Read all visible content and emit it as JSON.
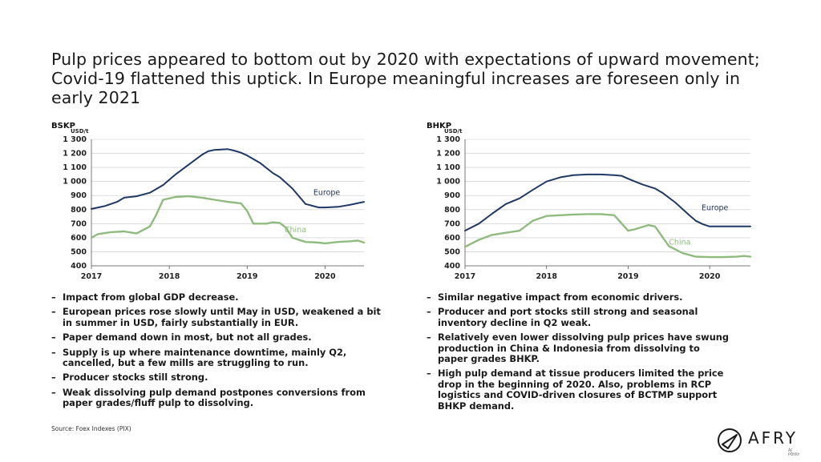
{
  "slide": {
    "title": "Pulp prices appeared to bottom out by 2020 with expectations of upward movement; Covid-19 flattened this uptick. In Europe meaningful increases are foreseen only in early 2021",
    "source": "Source: Foex Indexes (PIX)",
    "logo_text": "AFRY",
    "logo_subtext": "ÅF PÖYRY"
  },
  "left_bullets": [
    "Impact from global GDP decrease.",
    "European prices rose slowly until May in USD, weakened a bit in summer in USD, fairly substantially in EUR.",
    "Paper demand down in most, but not all grades.",
    "Supply is up where maintenance downtime, mainly Q2, cancelled, but a few mills are struggling to run.",
    "Producer stocks still strong.",
    "Weak dissolving pulp demand postpones conversions from paper grades/fluff pulp to dissolving."
  ],
  "right_bullets": [
    "Similar negative impact from economic drivers.",
    "Producer and port stocks still strong and seasonal inventory decline in Q2 weak.",
    "Relatively even lower dissolving pulp prices have swung production in China & Indonesia from dissolving to paper grades BHKP.",
    "High pulp demand at tissue producers limited the price drop in the beginning of 2020. Also, problems in RCP logistics and COVID-driven closures of BCTMP support BHKP demand."
  ],
  "colors": {
    "europe": "#1f3864",
    "china": "#8fbc7e",
    "grid": "#c8c8c8",
    "axis": "#555555"
  },
  "chart_data": [
    {
      "type": "line",
      "title": "BSKP",
      "ylabel": "USD/t",
      "ylim": [
        400,
        1300
      ],
      "xlim": [
        2017,
        2020.5
      ],
      "yticks": [
        "400",
        "500",
        "600",
        "700",
        "800",
        "900",
        "1 000",
        "1 100",
        "1 200",
        "1 300"
      ],
      "xticks": [
        "2017",
        "2018",
        "2019",
        "2020"
      ],
      "series": [
        {
          "name": "Europe",
          "x": [
            2017.0,
            2017.17,
            2017.33,
            2017.42,
            2017.58,
            2017.75,
            2017.92,
            2018.08,
            2018.25,
            2018.42,
            2018.5,
            2018.58,
            2018.75,
            2018.83,
            2018.92,
            2019.0,
            2019.17,
            2019.33,
            2019.42,
            2019.58,
            2019.75,
            2019.92,
            2020.0,
            2020.17,
            2020.33,
            2020.5
          ],
          "y": [
            805,
            825,
            855,
            885,
            895,
            920,
            975,
            1050,
            1120,
            1190,
            1215,
            1225,
            1230,
            1220,
            1205,
            1185,
            1130,
            1060,
            1030,
            950,
            840,
            815,
            815,
            820,
            835,
            855
          ]
        },
        {
          "name": "China",
          "x": [
            2017.0,
            2017.08,
            2017.25,
            2017.42,
            2017.58,
            2017.75,
            2017.83,
            2017.92,
            2018.08,
            2018.25,
            2018.42,
            2018.58,
            2018.75,
            2018.83,
            2018.92,
            2019.0,
            2019.08,
            2019.25,
            2019.33,
            2019.42,
            2019.5,
            2019.58,
            2019.75,
            2019.92,
            2020.0,
            2020.17,
            2020.33,
            2020.42,
            2020.5
          ],
          "y": [
            600,
            625,
            640,
            645,
            630,
            680,
            760,
            870,
            890,
            895,
            885,
            870,
            855,
            850,
            845,
            790,
            700,
            700,
            710,
            705,
            670,
            600,
            570,
            565,
            560,
            570,
            575,
            580,
            565
          ]
        }
      ]
    },
    {
      "type": "line",
      "title": "BHKP",
      "ylabel": "USD/t",
      "ylim": [
        400,
        1300
      ],
      "xlim": [
        2017,
        2020.5
      ],
      "yticks": [
        "400",
        "500",
        "600",
        "700",
        "800",
        "900",
        "1 000",
        "1 100",
        "1 200",
        "1 300"
      ],
      "xticks": [
        "2017",
        "2018",
        "2019",
        "2020"
      ],
      "series": [
        {
          "name": "Europe",
          "x": [
            2017.0,
            2017.17,
            2017.33,
            2017.5,
            2017.67,
            2017.83,
            2018.0,
            2018.17,
            2018.33,
            2018.5,
            2018.67,
            2018.83,
            2018.92,
            2019.0,
            2019.17,
            2019.33,
            2019.42,
            2019.58,
            2019.75,
            2019.83,
            2019.92,
            2020.0,
            2020.17,
            2020.33,
            2020.5
          ],
          "y": [
            650,
            700,
            770,
            840,
            880,
            940,
            1000,
            1030,
            1045,
            1050,
            1050,
            1045,
            1040,
            1020,
            980,
            950,
            920,
            850,
            760,
            720,
            695,
            680,
            680,
            680,
            680
          ]
        },
        {
          "name": "China",
          "x": [
            2017.0,
            2017.17,
            2017.33,
            2017.5,
            2017.67,
            2017.83,
            2018.0,
            2018.17,
            2018.33,
            2018.5,
            2018.67,
            2018.83,
            2019.0,
            2019.08,
            2019.25,
            2019.33,
            2019.5,
            2019.67,
            2019.83,
            2020.0,
            2020.17,
            2020.33,
            2020.42,
            2020.5
          ],
          "y": [
            535,
            585,
            620,
            635,
            650,
            720,
            755,
            760,
            765,
            768,
            768,
            760,
            650,
            660,
            690,
            680,
            540,
            490,
            465,
            462,
            462,
            465,
            470,
            465
          ]
        }
      ]
    }
  ]
}
